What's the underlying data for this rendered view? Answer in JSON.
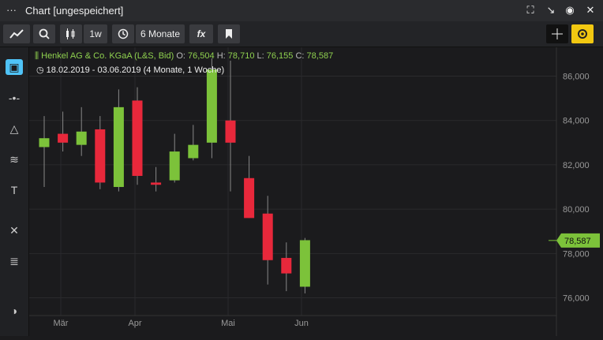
{
  "window": {
    "title": "Chart [ungespeichert]",
    "menu_icon": "ellipsis-icon",
    "buttons": [
      "fullscreen-icon",
      "popout-icon",
      "record-icon",
      "close-icon"
    ]
  },
  "toolbar": {
    "interval": "1w",
    "range": "6 Monate",
    "fx": "fx"
  },
  "legend": {
    "instrument": "Henkel AG & Co. KGaA (L&S, Bid)",
    "open_label": "O:",
    "open": "76,504",
    "high_label": "H:",
    "high": "78,710",
    "low_label": "L:",
    "low": "76,155",
    "close_label": "C:",
    "close": "78,587",
    "period": "18.02.2019 - 03.06.2019",
    "period_detail": "(4 Monate, 1 Woche)"
  },
  "colors": {
    "up": "#7cc23a",
    "down": "#e8283b",
    "last_price": "#7cc23a",
    "accent": "#f2c811"
  },
  "chart_data": {
    "type": "candlestick",
    "x_labels": [
      "Mär",
      "Apr",
      "Mai",
      "Jun"
    ],
    "y_ticks": [
      "76,000",
      "78,000",
      "80,000",
      "82,000",
      "84,000",
      "86,000"
    ],
    "y_tick_values": [
      76,
      78,
      80,
      82,
      84,
      86
    ],
    "ylim": [
      75.2,
      87.3
    ],
    "last_price_label": "78,587",
    "last_price": 78.587,
    "candles": [
      {
        "o": 82.8,
        "h": 84.2,
        "l": 81.0,
        "c": 83.2
      },
      {
        "o": 83.4,
        "h": 84.4,
        "l": 82.6,
        "c": 83.0
      },
      {
        "o": 82.9,
        "h": 84.6,
        "l": 82.4,
        "c": 83.5
      },
      {
        "o": 83.6,
        "h": 84.2,
        "l": 80.9,
        "c": 81.2
      },
      {
        "o": 81.0,
        "h": 85.4,
        "l": 80.8,
        "c": 84.6
      },
      {
        "o": 84.9,
        "h": 85.5,
        "l": 81.1,
        "c": 81.5
      },
      {
        "o": 81.2,
        "h": 81.9,
        "l": 80.8,
        "c": 81.1
      },
      {
        "o": 81.3,
        "h": 83.4,
        "l": 81.2,
        "c": 82.6
      },
      {
        "o": 82.3,
        "h": 83.8,
        "l": 82.2,
        "c": 82.9
      },
      {
        "o": 83.0,
        "h": 86.8,
        "l": 82.3,
        "c": 86.3
      },
      {
        "o": 84.0,
        "h": 86.7,
        "l": 80.8,
        "c": 83.0
      },
      {
        "o": 81.4,
        "h": 82.4,
        "l": 79.6,
        "c": 79.6
      },
      {
        "o": 79.8,
        "h": 80.6,
        "l": 76.6,
        "c": 77.7
      },
      {
        "o": 77.8,
        "h": 78.5,
        "l": 76.3,
        "c": 77.1
      },
      {
        "o": 76.5,
        "h": 78.7,
        "l": 76.2,
        "c": 78.6
      }
    ]
  }
}
